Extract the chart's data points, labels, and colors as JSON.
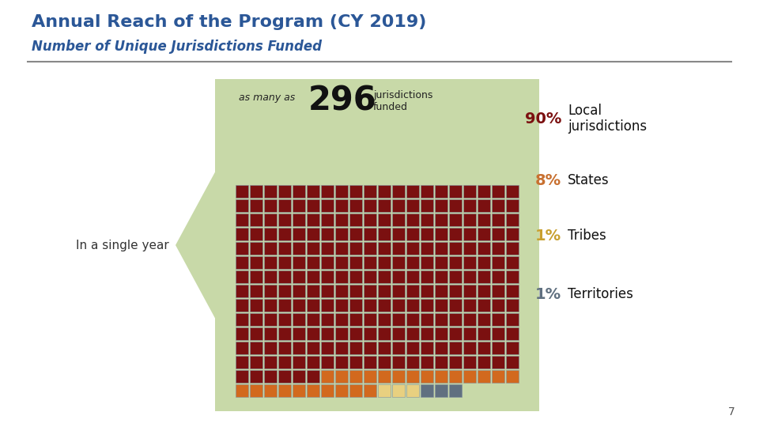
{
  "title": "Annual Reach of the Program (CY 2019)",
  "subtitle": "Number of Unique Jurisdictions Funded",
  "title_color": "#2B5797",
  "subtitle_color": "#2B5797",
  "bg_color": "#FFFFFF",
  "box_bg_color": "#C8D9A8",
  "number": "296",
  "as_many_as": "as many as",
  "jurisdictions_funded": "jurisdictions\nfunded",
  "in_a_single_year": "In a single year",
  "total_squares": 296,
  "cols": 20,
  "dark_red_color": "#7B1010",
  "orange_color": "#D2691E",
  "yellow_color": "#E8D080",
  "gray_color": "#607080",
  "square_border_color": "#8090A0",
  "n_local": 266,
  "n_states": 24,
  "n_tribes": 3,
  "n_territories": 3,
  "legend_items": [
    {
      "pct": "90%",
      "label": "Local\njurisdictions",
      "color": "#7B1010"
    },
    {
      "pct": "8%",
      "label": "States",
      "color": "#C87030"
    },
    {
      "pct": "1%",
      "label": "Tribes",
      "color": "#C8A030"
    },
    {
      "pct": "1%",
      "label": "Territories",
      "color": "#607080"
    }
  ],
  "page_number": "7"
}
